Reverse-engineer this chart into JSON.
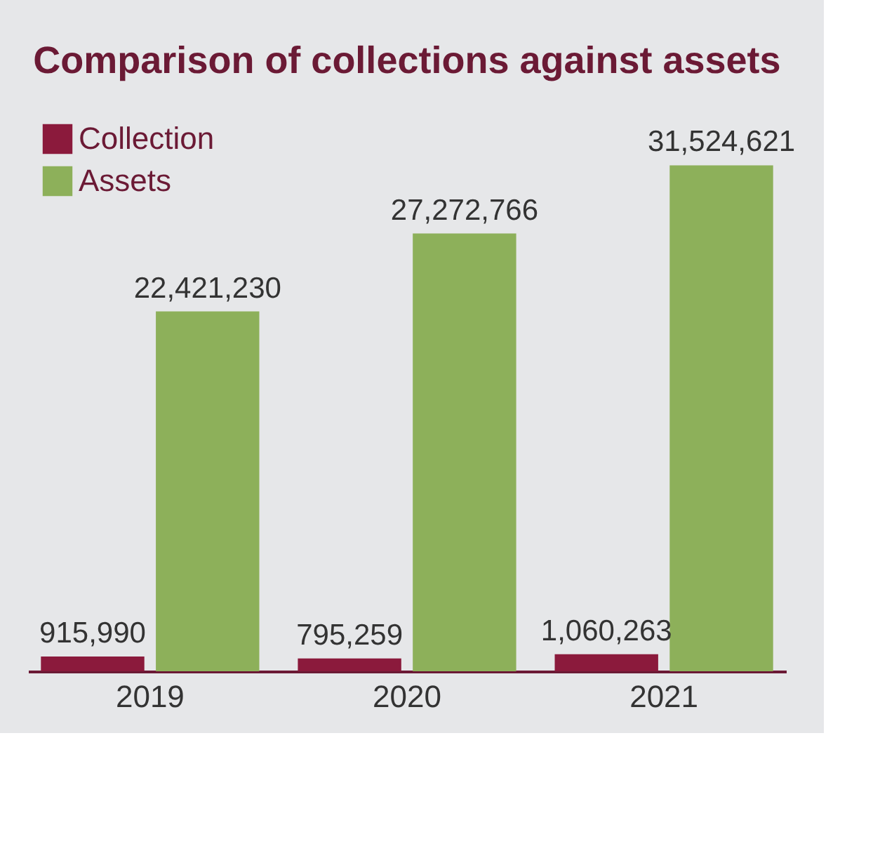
{
  "chart_data": {
    "type": "bar",
    "title": "Comparison of collections against assets",
    "categories": [
      "2019",
      "2020",
      "2021"
    ],
    "series": [
      {
        "name": "Collection",
        "color": "#8b1a3c",
        "values": [
          915990,
          795259,
          1060263
        ],
        "value_labels": [
          "915,990",
          "795,259",
          "1,060,263"
        ]
      },
      {
        "name": "Assets",
        "color": "#8db05a",
        "values": [
          22421230,
          27272766,
          31524621
        ],
        "value_labels": [
          "22,421,230",
          "27,272,766",
          "31,524,621"
        ]
      }
    ],
    "legend": "top left",
    "tick_labels": "x"
  }
}
